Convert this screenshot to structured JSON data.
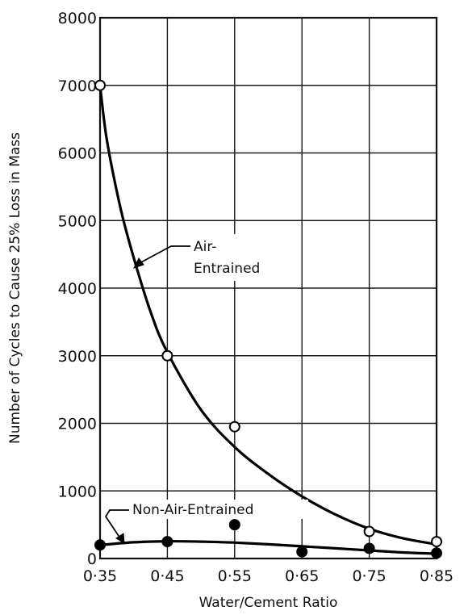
{
  "chart_data": {
    "type": "line",
    "xlabel": "Water/Cement Ratio",
    "ylabel": "Number of Cycles to Cause 25% Loss in Mass",
    "xlim": [
      0.35,
      0.85
    ],
    "ylim": [
      0,
      8000
    ],
    "x_ticks": [
      0.35,
      0.45,
      0.55,
      0.65,
      0.75,
      0.85
    ],
    "x_tick_labels": [
      "0·35",
      "0·45",
      "0·55",
      "0·65",
      "0·75",
      "0·85"
    ],
    "y_ticks": [
      0,
      1000,
      2000,
      3000,
      4000,
      5000,
      6000,
      7000,
      8000
    ],
    "y_tick_labels": [
      "0",
      "1000",
      "2000",
      "3000",
      "4000",
      "5000",
      "6000",
      "7000",
      "8000"
    ],
    "grid": true,
    "series": [
      {
        "name": "Air-Entrained",
        "marker": "open-circle",
        "points": [
          {
            "x": 0.35,
            "y": 7000
          },
          {
            "x": 0.45,
            "y": 3000
          },
          {
            "x": 0.55,
            "y": 1950
          },
          {
            "x": 0.75,
            "y": 400
          },
          {
            "x": 0.85,
            "y": 250
          }
        ],
        "curve": [
          {
            "x": 0.35,
            "y": 7000
          },
          {
            "x": 0.36,
            "y": 6200
          },
          {
            "x": 0.38,
            "y": 5200
          },
          {
            "x": 0.4,
            "y": 4450
          },
          {
            "x": 0.425,
            "y": 3650
          },
          {
            "x": 0.45,
            "y": 3050
          },
          {
            "x": 0.5,
            "y": 2200
          },
          {
            "x": 0.55,
            "y": 1650
          },
          {
            "x": 0.6,
            "y": 1250
          },
          {
            "x": 0.65,
            "y": 920
          },
          {
            "x": 0.7,
            "y": 650
          },
          {
            "x": 0.75,
            "y": 440
          },
          {
            "x": 0.8,
            "y": 300
          },
          {
            "x": 0.85,
            "y": 210
          }
        ]
      },
      {
        "name": "Non-Air-Entrained",
        "marker": "filled-circle",
        "points": [
          {
            "x": 0.35,
            "y": 200
          },
          {
            "x": 0.45,
            "y": 250
          },
          {
            "x": 0.55,
            "y": 500
          },
          {
            "x": 0.65,
            "y": 100
          },
          {
            "x": 0.75,
            "y": 150
          },
          {
            "x": 0.85,
            "y": 80
          }
        ],
        "curve": [
          {
            "x": 0.35,
            "y": 200
          },
          {
            "x": 0.4,
            "y": 240
          },
          {
            "x": 0.45,
            "y": 255
          },
          {
            "x": 0.5,
            "y": 250
          },
          {
            "x": 0.55,
            "y": 235
          },
          {
            "x": 0.6,
            "y": 210
          },
          {
            "x": 0.65,
            "y": 180
          },
          {
            "x": 0.7,
            "y": 150
          },
          {
            "x": 0.75,
            "y": 120
          },
          {
            "x": 0.8,
            "y": 90
          },
          {
            "x": 0.85,
            "y": 70
          }
        ]
      }
    ],
    "annotations": [
      {
        "text_lines": [
          "Air-",
          "Entrained"
        ],
        "series": "Air-Entrained"
      },
      {
        "text_lines": [
          "Non-Air-Entrained"
        ],
        "series": "Non-Air-Entrained"
      }
    ]
  }
}
